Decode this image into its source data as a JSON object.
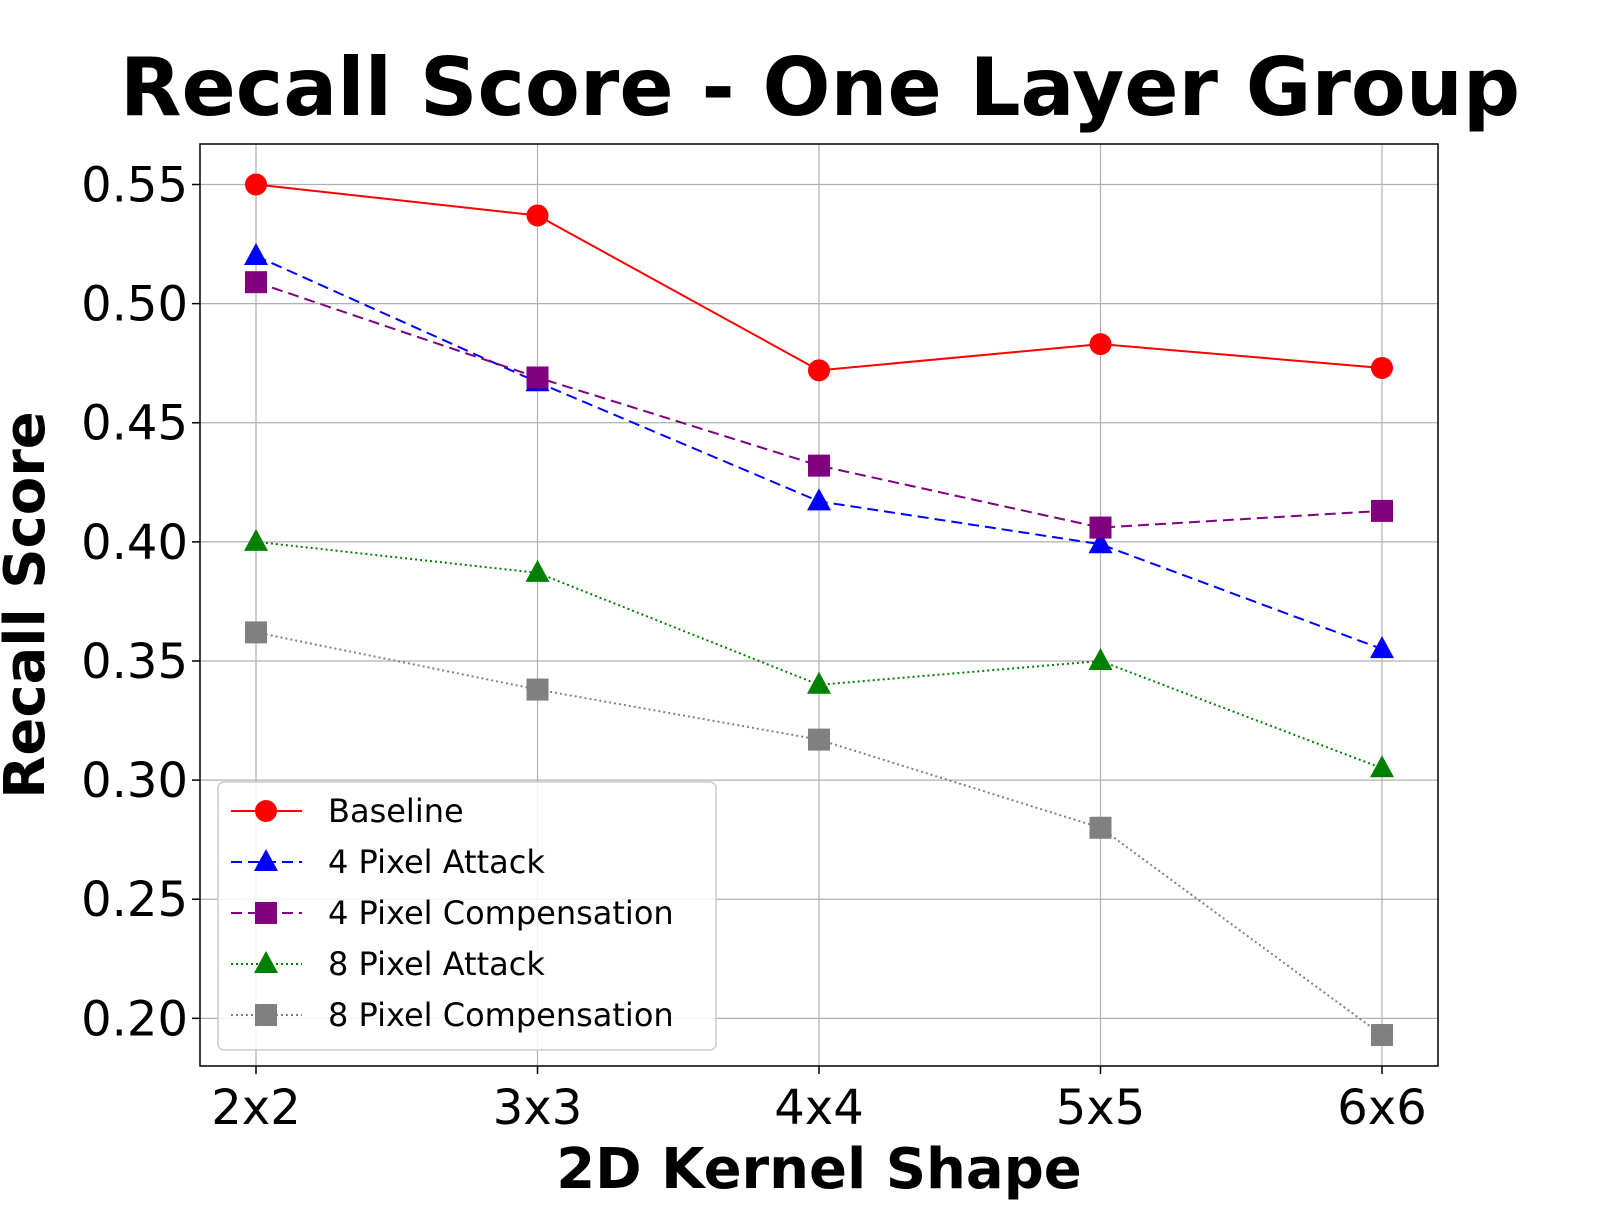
{
  "chart_data": {
    "type": "line",
    "title": "Recall Score - One Layer Group",
    "xlabel": "2D Kernel Shape",
    "ylabel": "Recall Score",
    "categories": [
      "2x2",
      "3x3",
      "4x4",
      "5x5",
      "6x6"
    ],
    "ylim": [
      0.18,
      0.567
    ],
    "yticks": [
      0.2,
      0.25,
      0.3,
      0.35,
      0.4,
      0.45,
      0.5,
      0.55
    ],
    "ytick_labels": [
      "0.20",
      "0.25",
      "0.30",
      "0.35",
      "0.40",
      "0.45",
      "0.50",
      "0.55"
    ],
    "grid": true,
    "legend_position": "lower-left",
    "series": [
      {
        "name": "Baseline",
        "values": [
          0.55,
          0.537,
          0.472,
          0.483,
          0.473
        ],
        "color": "#ff0000",
        "marker": "circle",
        "linestyle": "solid"
      },
      {
        "name": "4 Pixel Attack",
        "values": [
          0.52,
          0.467,
          0.417,
          0.399,
          0.355
        ],
        "color": "#0000ff",
        "marker": "triangle",
        "linestyle": "dashed"
      },
      {
        "name": "4 Pixel Compensation",
        "values": [
          0.509,
          0.469,
          0.432,
          0.406,
          0.413
        ],
        "color": "#800080",
        "marker": "square",
        "linestyle": "dashed"
      },
      {
        "name": "8 Pixel Attack",
        "values": [
          0.4,
          0.387,
          0.34,
          0.35,
          0.305
        ],
        "color": "#008000",
        "marker": "triangle",
        "linestyle": "dotted"
      },
      {
        "name": "8 Pixel Compensation",
        "values": [
          0.362,
          0.338,
          0.317,
          0.28,
          0.193
        ],
        "color": "#808080",
        "marker": "square",
        "linestyle": "dotted"
      }
    ]
  }
}
